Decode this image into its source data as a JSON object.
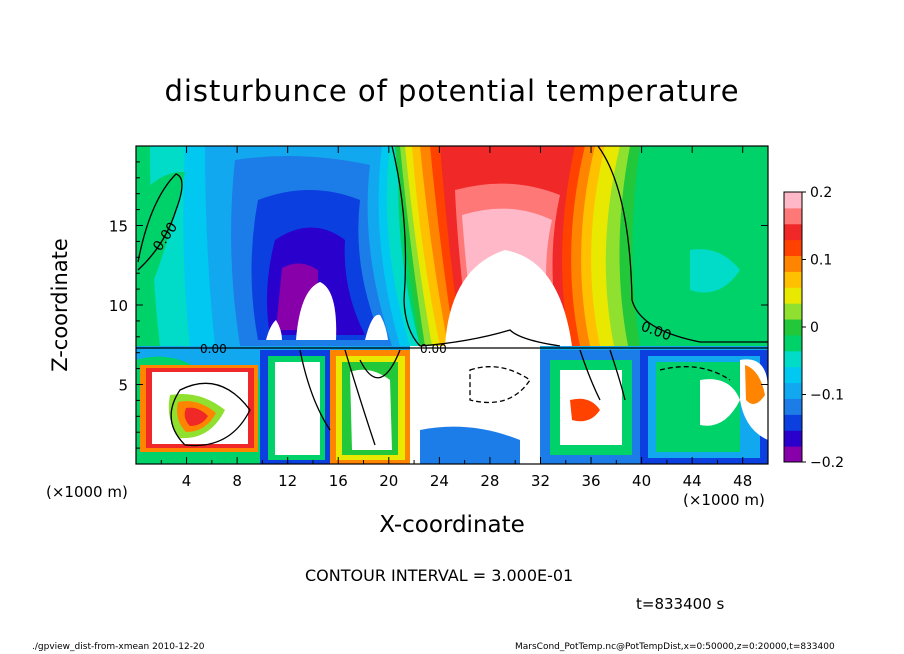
{
  "chart_data": {
    "type": "heatmap",
    "title": "disturbunce of potential temperature",
    "xlabel": "X-coordinate",
    "ylabel": "Z-coordinate",
    "x_unit": "(×1000 m)",
    "xlim": [
      0,
      50
    ],
    "ylim": [
      0,
      20
    ],
    "x_ticks": [
      "4",
      "8",
      "12",
      "16",
      "20",
      "24",
      "28",
      "32",
      "36",
      "40",
      "44",
      "48"
    ],
    "y_ticks": [
      "5",
      "10",
      "15"
    ],
    "colorbar": {
      "range": [
        -0.2,
        0.2
      ],
      "tick_labels": [
        "0.2",
        "0.1",
        "0",
        "−0.1",
        "−0.2"
      ],
      "tick_values": [
        0.2,
        0.1,
        0,
        -0.1,
        -0.2
      ],
      "colors": [
        "#8800aa",
        "#2a00cc",
        "#0b3fe0",
        "#1d7de8",
        "#11a8f0",
        "#00c8f0",
        "#00dcc8",
        "#00d26a",
        "#22c83a",
        "#90e030",
        "#e8e800",
        "#ffc000",
        "#ff8400",
        "#ff4200",
        "#f02828",
        "#ff7878",
        "#ffb8c8"
      ]
    },
    "contour_labels": [
      "0.00",
      "0.00",
      "0.00",
      "0.00"
    ],
    "contour_interval_text": "CONTOUR INTERVAL = 3.000E-01",
    "time_text": "t=833400  s"
  },
  "footer": {
    "left": "./gpview_dist-from-xmean  2010-12-20",
    "right": "MarsCond_PotTemp.nc@PotTempDist,x=0:50000,z=0:20000,t=833400"
  }
}
